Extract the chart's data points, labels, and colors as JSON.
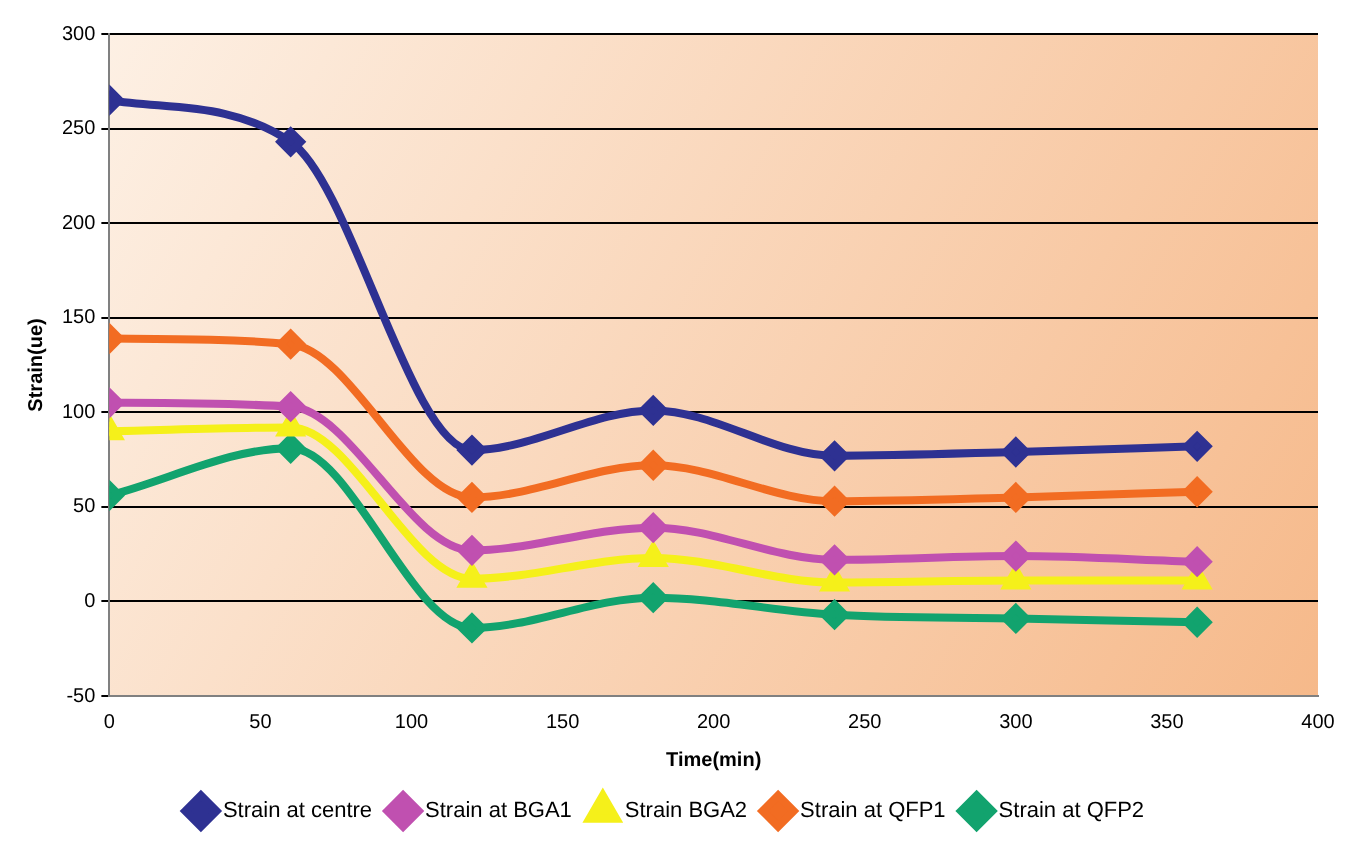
{
  "chart_data": {
    "type": "line",
    "xlabel": "Time(min)",
    "ylabel": "Strain(ue)",
    "xlim": [
      0,
      400
    ],
    "xticks": [
      0,
      50,
      100,
      150,
      200,
      250,
      300,
      350,
      400
    ],
    "ylim": [
      -50,
      300
    ],
    "yticks": [
      -50,
      0,
      50,
      100,
      150,
      200,
      250,
      300
    ],
    "grid": "y",
    "legend": "bottom",
    "marker": "diamond",
    "line_style": "solid",
    "x": [
      0,
      60,
      120,
      180,
      240,
      300,
      360
    ],
    "series": [
      {
        "name": "Strain at centre",
        "color": "#2e3192",
        "values": [
          265,
          243,
          80,
          101,
          77,
          79,
          82
        ]
      },
      {
        "name": "Strain at BGA1",
        "color": "#c050b0",
        "values": [
          105,
          103,
          27,
          39,
          22,
          24,
          21
        ]
      },
      {
        "name": "Strain BGA2",
        "color": "#f5f01a",
        "marker": "triangle",
        "values": [
          90,
          92,
          12,
          23,
          10,
          11,
          11
        ]
      },
      {
        "name": "Strain at QFP1",
        "color": "#f26c22",
        "values": [
          139,
          136,
          55,
          72,
          53,
          55,
          58
        ]
      },
      {
        "name": "Strain at QFP2",
        "color": "#12a36e",
        "values": [
          56,
          81,
          -14,
          2,
          -7,
          -9,
          -11
        ]
      }
    ]
  }
}
